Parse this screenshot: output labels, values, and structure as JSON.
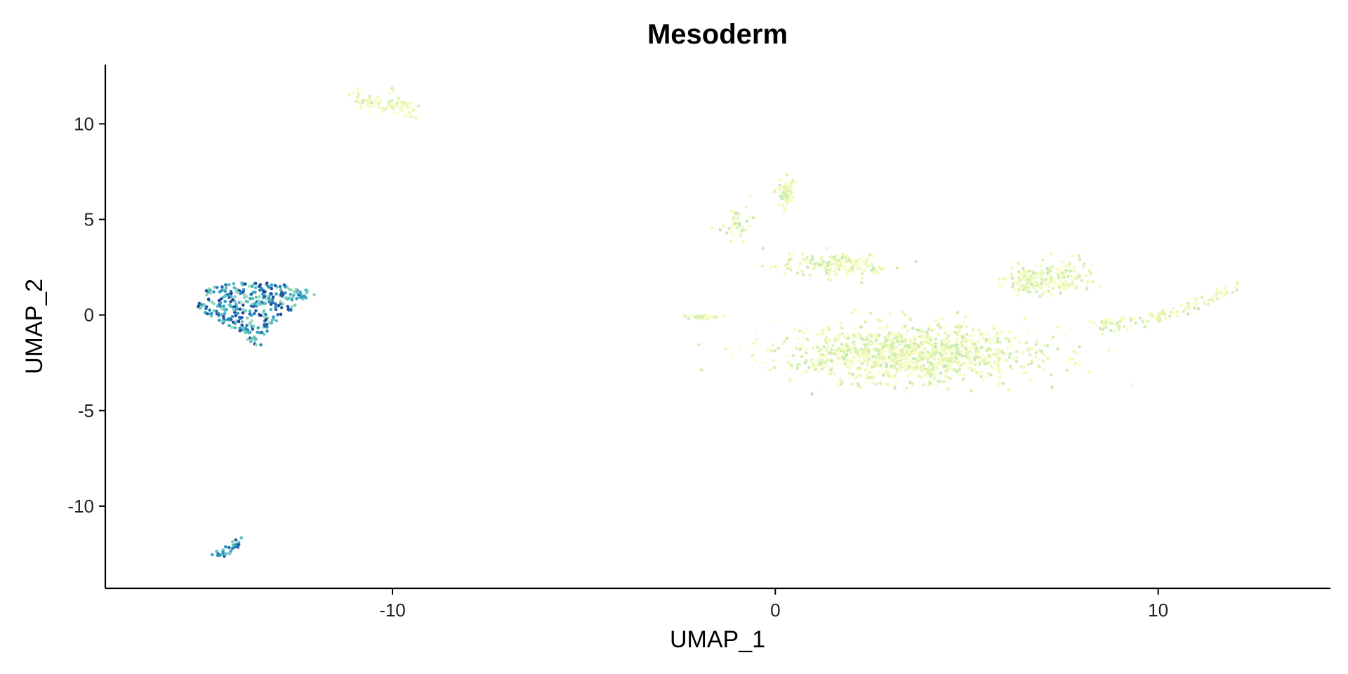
{
  "chart_data": {
    "type": "scatter",
    "title": "Mesoderm",
    "xlabel": "UMAP_1",
    "ylabel": "UMAP_2",
    "xlim": [
      -17.5,
      14.5
    ],
    "ylim": [
      -14.3,
      13.1
    ],
    "xticks": [
      -10,
      0,
      10
    ],
    "yticks": [
      -10,
      -5,
      0,
      5,
      10
    ],
    "grid": false,
    "legend": "none",
    "color_scale": [
      "#ffffd9",
      "#edf8b1",
      "#c7e9b4",
      "#7fcdbb",
      "#41b6c4",
      "#1d91c0",
      "#225ea8",
      "#253494"
    ],
    "clusters": [
      {
        "id": "left-main",
        "center": [
          -13.5,
          0.4
        ],
        "n": 320,
        "points": [
          [
            -15.2,
            0.3
          ],
          [
            -15.0,
            1.0
          ],
          [
            -14.8,
            1.4
          ],
          [
            -14.4,
            1.6
          ],
          [
            -14.0,
            1.7
          ],
          [
            -13.6,
            1.7
          ],
          [
            -13.0,
            1.7
          ],
          [
            -12.6,
            1.6
          ],
          [
            -12.2,
            1.3
          ],
          [
            -12.0,
            1.0
          ],
          [
            -12.3,
            0.6
          ],
          [
            -12.8,
            0.1
          ],
          [
            -13.2,
            -0.6
          ],
          [
            -13.3,
            -1.2
          ],
          [
            -13.4,
            -1.8
          ],
          [
            -13.7,
            -1.4
          ],
          [
            -14.2,
            -0.7
          ],
          [
            -14.6,
            -0.2
          ]
        ],
        "value_range": [
          0.35,
          1.0
        ]
      },
      {
        "id": "left-small-bottom",
        "center": [
          -14.3,
          -12.3
        ],
        "n": 30,
        "value_range": [
          0.4,
          0.9
        ]
      },
      {
        "id": "top-small",
        "center": [
          -10.5,
          10.9
        ],
        "n": 90,
        "value_range": [
          0.0,
          0.25
        ]
      },
      {
        "id": "right-large",
        "center": [
          4.0,
          -1.5
        ],
        "n": 1700,
        "value_range": [
          0.0,
          0.3
        ]
      }
    ]
  }
}
